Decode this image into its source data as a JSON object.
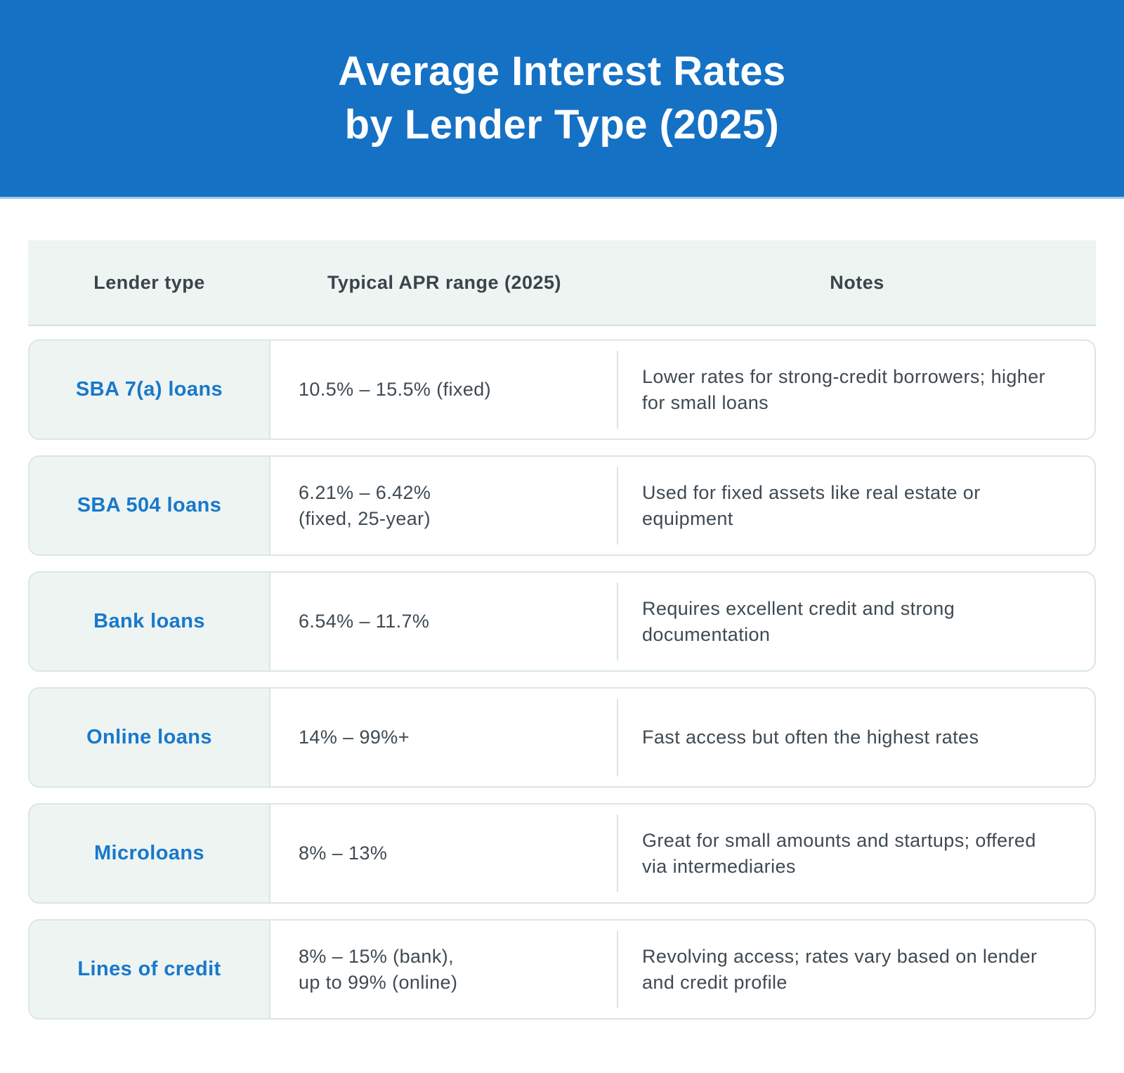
{
  "header": {
    "title_line1": "Average Interest Rates",
    "title_line2": "by Lender Type (2025)"
  },
  "table": {
    "columns": [
      "Lender type",
      "Typical APR range (2025)",
      "Notes"
    ],
    "rows": [
      {
        "lender": "SBA 7(a) loans",
        "apr": "10.5% – 15.5% (fixed)",
        "notes": "Lower rates for strong-credit borrowers; higher for small loans"
      },
      {
        "lender": "SBA 504 loans",
        "apr": "6.21% – 6.42%\n(fixed, 25-year)",
        "notes": "Used for fixed assets like real estate or equipment"
      },
      {
        "lender": "Bank loans",
        "apr": "6.54% – 11.7%",
        "notes": "Requires excellent credit and strong documentation"
      },
      {
        "lender": "Online loans",
        "apr": "14% – 99%+",
        "notes": "Fast access but often the highest rates"
      },
      {
        "lender": "Microloans",
        "apr": "8% – 13%",
        "notes": "Great for small amounts and startups; offered via intermediaries"
      },
      {
        "lender": "Lines of credit",
        "apr": "8% – 15% (bank),\nup to 99% (online)",
        "notes": "Revolving access; rates vary based on lender and credit profile"
      }
    ]
  },
  "chart_data": {
    "type": "table",
    "title": "Average Interest Rates by Lender Type (2025)",
    "columns": [
      "Lender type",
      "Typical APR range (2025)",
      "Notes"
    ],
    "rows": [
      [
        "SBA 7(a) loans",
        "10.5% – 15.5% (fixed)",
        "Lower rates for strong-credit borrowers; higher for small loans"
      ],
      [
        "SBA 504 loans",
        "6.21% – 6.42% (fixed, 25-year)",
        "Used for fixed assets like real estate or equipment"
      ],
      [
        "Bank loans",
        "6.54% – 11.7%",
        "Requires excellent credit and strong documentation"
      ],
      [
        "Online loans",
        "14% – 99%+",
        "Fast access but often the highest rates"
      ],
      [
        "Microloans",
        "8% – 13%",
        "Great for small amounts and startups; offered via intermediaries"
      ],
      [
        "Lines of credit",
        "8% – 15% (bank), up to 99% (online)",
        "Revolving access; rates vary based on lender and credit profile"
      ]
    ],
    "apr_ranges_numeric_pct": [
      {
        "lender": "SBA 7(a) loans",
        "min": 10.5,
        "max": 15.5
      },
      {
        "lender": "SBA 504 loans",
        "min": 6.21,
        "max": 6.42
      },
      {
        "lender": "Bank loans",
        "min": 6.54,
        "max": 11.7
      },
      {
        "lender": "Online loans",
        "min": 14,
        "max": 99
      },
      {
        "lender": "Microloans",
        "min": 8,
        "max": 13
      },
      {
        "lender": "Lines of credit",
        "min": 8,
        "max": 99
      }
    ]
  },
  "colors": {
    "banner_bg": "#1571C4",
    "banner_edge": "#9CC6EA",
    "accent_text": "#1878CC",
    "cell_bg": "#EEF4F1",
    "border": "#D9E8DE",
    "body_text": "#3E4A52",
    "header_text": "#39444B"
  }
}
